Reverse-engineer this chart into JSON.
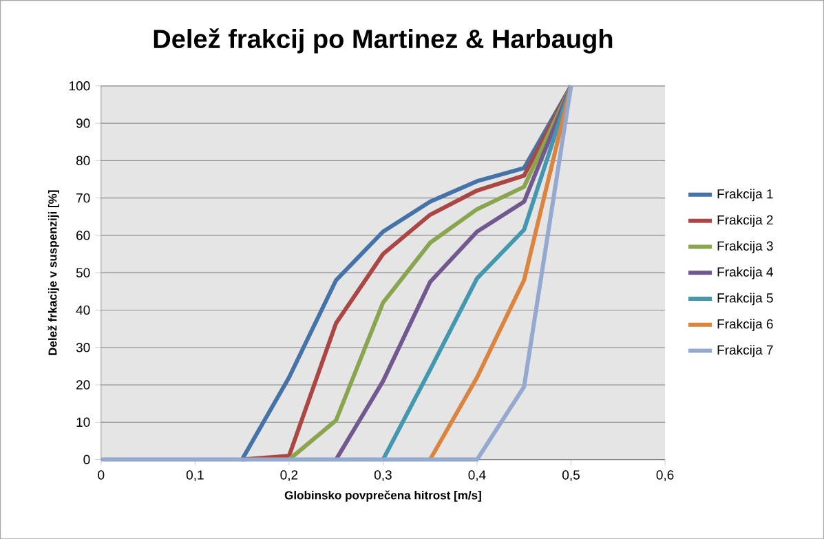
{
  "chart_data": {
    "type": "line",
    "title": "Delež frakcij po Martinez & Harbaugh",
    "xlabel": "Globinsko povprečena hitrost [m/s]",
    "ylabel": "Delež frkacije v suspenziji [%]",
    "x": [
      0,
      0.05,
      0.1,
      0.15,
      0.2,
      0.25,
      0.3,
      0.35,
      0.4,
      0.45,
      0.5
    ],
    "series": [
      {
        "name": "Frakcija 1",
        "color": "#4573a7",
        "values": [
          null,
          null,
          null,
          0,
          22,
          48,
          61,
          69,
          74.5,
          78,
          100
        ]
      },
      {
        "name": "Frakcija 2",
        "color": "#aa4643",
        "values": [
          null,
          null,
          null,
          0,
          1,
          36.5,
          55,
          65.5,
          72,
          76,
          100
        ]
      },
      {
        "name": "Frakcija 3",
        "color": "#89a54e",
        "values": [
          null,
          null,
          null,
          null,
          0,
          10.5,
          42,
          58,
          67,
          73,
          100
        ]
      },
      {
        "name": "Frakcija 4",
        "color": "#71588f",
        "values": [
          null,
          null,
          null,
          null,
          null,
          0,
          21,
          47.5,
          61,
          69,
          100
        ]
      },
      {
        "name": "Frakcija 5",
        "color": "#4198af",
        "values": [
          null,
          null,
          null,
          null,
          null,
          null,
          0,
          24,
          48.5,
          61.5,
          100
        ]
      },
      {
        "name": "Frakcija 6",
        "color": "#db843d",
        "values": [
          null,
          null,
          null,
          null,
          null,
          null,
          null,
          0,
          22,
          48,
          100
        ]
      },
      {
        "name": "Frakcija 7",
        "color": "#93a9cf",
        "values": [
          0,
          0,
          0,
          0,
          0,
          0,
          0,
          0,
          0,
          19.5,
          100
        ]
      }
    ],
    "xlim": [
      0,
      0.6
    ],
    "xticks": [
      0,
      {
        "value": 0.1,
        "label": "0,1"
      },
      {
        "value": 0.2,
        "label": "0,2"
      },
      {
        "value": 0.3,
        "label": "0,3"
      },
      {
        "value": 0.4,
        "label": "0,4"
      },
      {
        "value": 0.5,
        "label": "0,5"
      },
      {
        "value": 0.6,
        "label": "0,6"
      }
    ],
    "ylim": [
      0,
      100
    ],
    "yticks": [
      0,
      10,
      20,
      30,
      40,
      50,
      60,
      70,
      80,
      90,
      100
    ],
    "grid": "y",
    "legend": "right"
  }
}
